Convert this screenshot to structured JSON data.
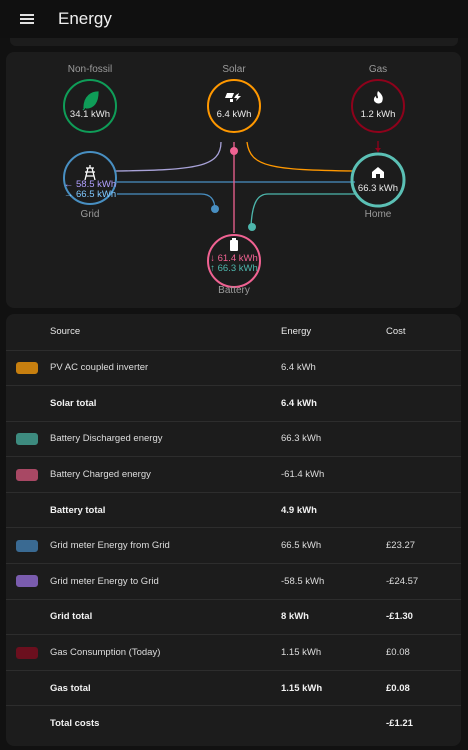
{
  "header": {
    "title": "Energy",
    "menu_icon": "menu-icon"
  },
  "flow": {
    "nodes": {
      "nonfossil": {
        "label": "Non-fossil",
        "value": "34.1 kWh",
        "color": "#0f9d58",
        "icon": "leaf-icon"
      },
      "solar": {
        "label": "Solar",
        "value": "6.4 kWh",
        "color": "#ff9800",
        "icon": "solar-power-icon"
      },
      "gas": {
        "label": "Gas",
        "value": "1.2 kWh",
        "color": "#8e021b",
        "icon": "fire-icon"
      },
      "grid": {
        "label": "Grid",
        "in_value": "← 58.5 kWh",
        "out_value": "→ 66.5 kWh",
        "in_color": "#b1a0ff",
        "out_color": "#7fc8ff",
        "color": "#488fc2",
        "icon": "transmission-tower-icon"
      },
      "home": {
        "label": "Home",
        "value": "66.3 kWh",
        "color": "#5bc0b5",
        "icon": "home-icon"
      },
      "battery": {
        "label": "Battery",
        "in_value": "↓ 61.4 kWh",
        "out_value": "↑ 66.3 kWh",
        "in_color": "#f06292",
        "out_color": "#4db6ac",
        "color": "#f06292",
        "icon": "battery-icon"
      }
    }
  },
  "table": {
    "headers": {
      "source": "Source",
      "energy": "Energy",
      "cost": "Cost"
    },
    "rows": [
      {
        "swatch": "#c77f0f",
        "source": "PV AC coupled inverter",
        "energy": "6.4 kWh",
        "cost": "",
        "total": false
      },
      {
        "swatch": "",
        "source": "Solar total",
        "energy": "6.4 kWh",
        "cost": "",
        "total": true
      },
      {
        "swatch": "#3d8b7f",
        "source": "Battery Discharged energy",
        "energy": "66.3 kWh",
        "cost": "",
        "total": false
      },
      {
        "swatch": "#a84864",
        "source": "Battery Charged energy",
        "energy": "-61.4 kWh",
        "cost": "",
        "total": false
      },
      {
        "swatch": "",
        "source": "Battery total",
        "energy": "4.9 kWh",
        "cost": "",
        "total": true
      },
      {
        "swatch": "#3a6a92",
        "source": "Grid meter Energy from Grid",
        "energy": "66.5 kWh",
        "cost": "£23.27",
        "total": false
      },
      {
        "swatch": "#7a5cae",
        "source": "Grid meter Energy to Grid",
        "energy": "-58.5 kWh",
        "cost": "-£24.57",
        "total": false
      },
      {
        "swatch": "",
        "source": "Grid total",
        "energy": "8 kWh",
        "cost": "-£1.30",
        "total": true
      },
      {
        "swatch": "#6b0f1e",
        "source": "Gas Consumption (Today)",
        "energy": "1.15 kWh",
        "cost": "£0.08",
        "total": false
      },
      {
        "swatch": "",
        "source": "Gas total",
        "energy": "1.15 kWh",
        "cost": "£0.08",
        "total": true
      },
      {
        "swatch": "",
        "source": "Total costs",
        "energy": "",
        "cost": "-£1.21",
        "total": true
      }
    ]
  }
}
